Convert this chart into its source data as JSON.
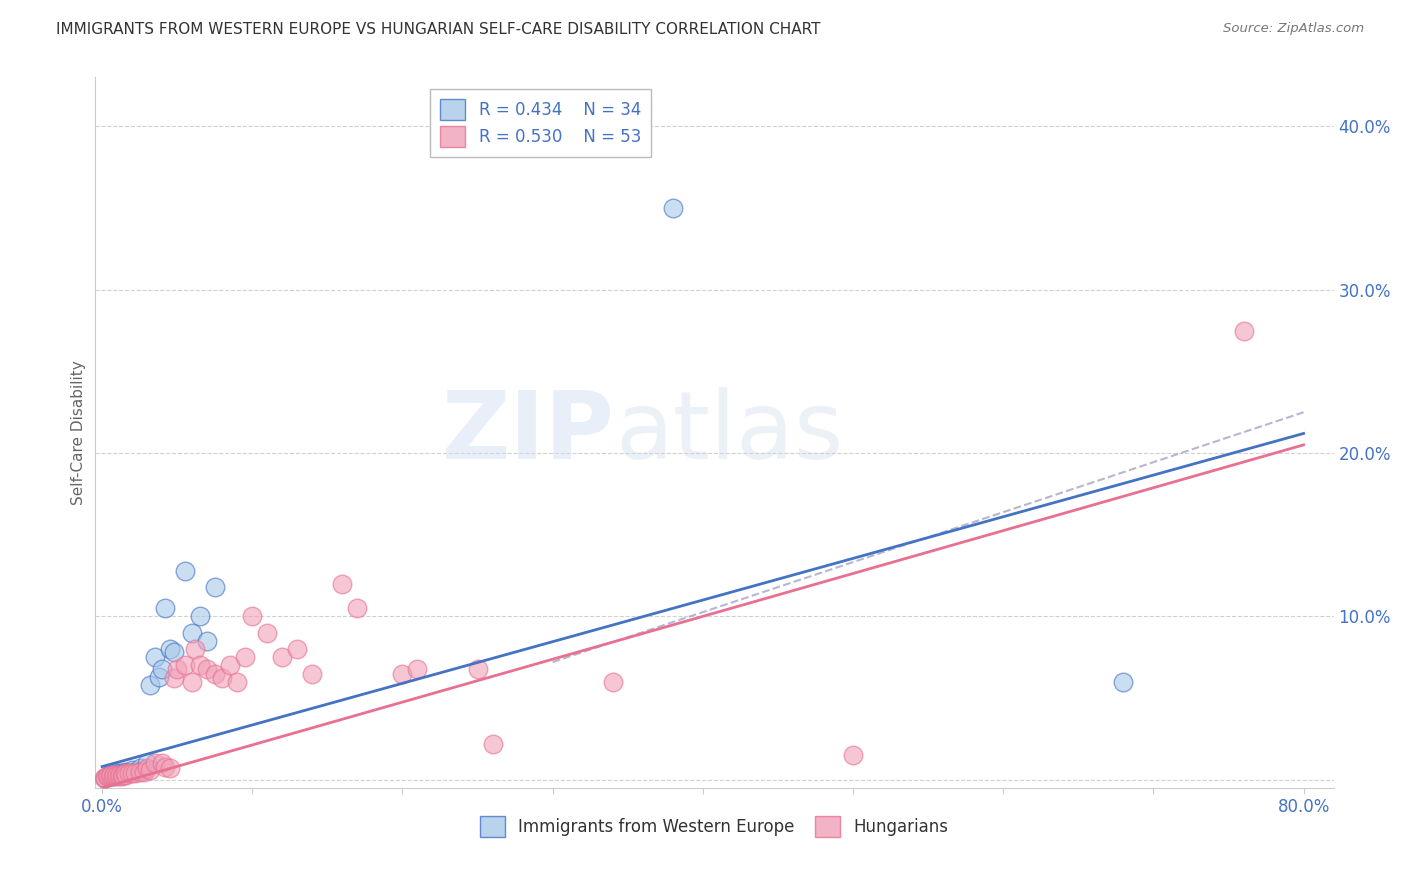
{
  "title": "IMMIGRANTS FROM WESTERN EUROPE VS HUNGARIAN SELF-CARE DISABILITY CORRELATION CHART",
  "source": "Source: ZipAtlas.com",
  "ylabel": "Self-Care Disability",
  "yticks": [
    0.0,
    0.1,
    0.2,
    0.3,
    0.4
  ],
  "ytick_labels": [
    "",
    "10.0%",
    "20.0%",
    "30.0%",
    "40.0%"
  ],
  "xticks": [
    0.0,
    0.1,
    0.2,
    0.3,
    0.4,
    0.5,
    0.6,
    0.7,
    0.8
  ],
  "xtick_labels": [
    "0.0%",
    "",
    "",
    "",
    "",
    "",
    "",
    "",
    "80.0%"
  ],
  "xlim": [
    -0.005,
    0.82
  ],
  "ylim": [
    -0.005,
    0.43
  ],
  "legend_r1": "R = 0.434",
  "legend_n1": "N = 34",
  "legend_r2": "R = 0.530",
  "legend_n2": "N = 53",
  "color_blue": "#A8C8E8",
  "color_pink": "#F0A0B8",
  "color_blue_line": "#4472C4",
  "color_pink_line": "#E87090",
  "color_dashed": "#AAAACC",
  "color_axis_label": "#4472C4",
  "watermark_zip": "ZIP",
  "watermark_atlas": "atlas",
  "blue_line_x0": 0.0,
  "blue_line_y0": 0.008,
  "blue_line_x1": 0.8,
  "blue_line_y1": 0.212,
  "pink_line_x0": 0.0,
  "pink_line_y0": -0.005,
  "pink_line_x1": 0.8,
  "pink_line_y1": 0.205,
  "dash_line_x0": 0.3,
  "dash_line_y0": 0.072,
  "dash_line_x1": 0.8,
  "dash_line_y1": 0.225,
  "blue_x": [
    0.002,
    0.004,
    0.005,
    0.006,
    0.007,
    0.008,
    0.009,
    0.01,
    0.011,
    0.012,
    0.013,
    0.014,
    0.015,
    0.016,
    0.018,
    0.02,
    0.022,
    0.025,
    0.028,
    0.03,
    0.032,
    0.035,
    0.038,
    0.04,
    0.042,
    0.045,
    0.048,
    0.055,
    0.06,
    0.065,
    0.07,
    0.075,
    0.38,
    0.68
  ],
  "blue_y": [
    0.001,
    0.002,
    0.002,
    0.003,
    0.002,
    0.003,
    0.003,
    0.004,
    0.003,
    0.004,
    0.003,
    0.004,
    0.005,
    0.004,
    0.005,
    0.006,
    0.005,
    0.007,
    0.006,
    0.01,
    0.058,
    0.075,
    0.063,
    0.068,
    0.105,
    0.08,
    0.078,
    0.128,
    0.09,
    0.1,
    0.085,
    0.118,
    0.35,
    0.06
  ],
  "pink_x": [
    0.001,
    0.002,
    0.003,
    0.004,
    0.005,
    0.006,
    0.007,
    0.008,
    0.009,
    0.01,
    0.011,
    0.012,
    0.013,
    0.014,
    0.015,
    0.016,
    0.018,
    0.02,
    0.022,
    0.025,
    0.028,
    0.03,
    0.032,
    0.035,
    0.04,
    0.042,
    0.045,
    0.048,
    0.05,
    0.055,
    0.06,
    0.062,
    0.065,
    0.07,
    0.075,
    0.08,
    0.085,
    0.09,
    0.095,
    0.1,
    0.11,
    0.12,
    0.13,
    0.14,
    0.16,
    0.17,
    0.2,
    0.21,
    0.25,
    0.26,
    0.34,
    0.5,
    0.76
  ],
  "pink_y": [
    0.001,
    0.001,
    0.002,
    0.002,
    0.002,
    0.003,
    0.002,
    0.003,
    0.002,
    0.003,
    0.002,
    0.003,
    0.002,
    0.003,
    0.004,
    0.003,
    0.004,
    0.004,
    0.004,
    0.005,
    0.005,
    0.007,
    0.006,
    0.01,
    0.01,
    0.008,
    0.007,
    0.062,
    0.068,
    0.07,
    0.06,
    0.08,
    0.07,
    0.068,
    0.065,
    0.062,
    0.07,
    0.06,
    0.075,
    0.1,
    0.09,
    0.075,
    0.08,
    0.065,
    0.12,
    0.105,
    0.065,
    0.068,
    0.068,
    0.022,
    0.06,
    0.015,
    0.275
  ]
}
